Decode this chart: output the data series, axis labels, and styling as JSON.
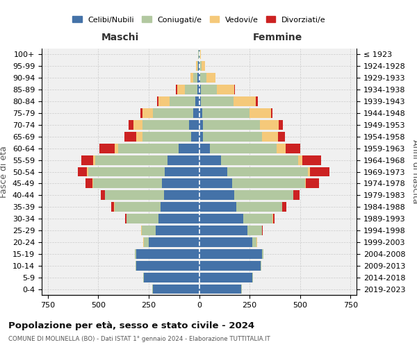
{
  "age_groups": [
    "0-4",
    "5-9",
    "10-14",
    "15-19",
    "20-24",
    "25-29",
    "30-34",
    "35-39",
    "40-44",
    "45-49",
    "50-54",
    "55-59",
    "60-64",
    "65-69",
    "70-74",
    "75-79",
    "80-84",
    "85-89",
    "90-94",
    "95-99",
    "100+"
  ],
  "birth_years": [
    "2019-2023",
    "2014-2018",
    "2009-2013",
    "2004-2008",
    "1999-2003",
    "1994-1998",
    "1989-1993",
    "1984-1988",
    "1979-1983",
    "1974-1978",
    "1969-1973",
    "1964-1968",
    "1959-1963",
    "1954-1958",
    "1949-1953",
    "1944-1948",
    "1939-1943",
    "1934-1938",
    "1929-1933",
    "1924-1928",
    "≤ 1923"
  ],
  "colors": {
    "celibi": "#4472a8",
    "coniugati": "#b2c8a0",
    "vedovi": "#f5c97a",
    "divorziati": "#cc2222"
  },
  "males": {
    "celibi": [
      230,
      275,
      310,
      310,
      250,
      215,
      200,
      190,
      175,
      185,
      170,
      155,
      100,
      40,
      50,
      30,
      18,
      10,
      8,
      4,
      2
    ],
    "coniugati": [
      1,
      2,
      5,
      10,
      25,
      70,
      160,
      230,
      290,
      340,
      380,
      360,
      300,
      240,
      230,
      200,
      130,
      60,
      20,
      5,
      2
    ],
    "vedovi": [
      0,
      0,
      0,
      0,
      1,
      1,
      1,
      1,
      1,
      2,
      5,
      10,
      20,
      30,
      45,
      50,
      55,
      40,
      15,
      5,
      1
    ],
    "divorziati": [
      0,
      0,
      0,
      0,
      1,
      2,
      5,
      15,
      20,
      35,
      45,
      60,
      75,
      60,
      25,
      10,
      5,
      5,
      0,
      0,
      0
    ]
  },
  "females": {
    "celibi": [
      210,
      265,
      305,
      310,
      265,
      240,
      220,
      185,
      175,
      165,
      140,
      110,
      55,
      20,
      20,
      15,
      10,
      8,
      5,
      3,
      2
    ],
    "coniugati": [
      1,
      1,
      3,
      8,
      20,
      70,
      145,
      225,
      290,
      360,
      400,
      380,
      330,
      290,
      280,
      235,
      160,
      80,
      30,
      10,
      2
    ],
    "vedovi": [
      0,
      0,
      0,
      0,
      1,
      1,
      1,
      2,
      2,
      5,
      10,
      20,
      45,
      80,
      95,
      105,
      110,
      85,
      45,
      15,
      3
    ],
    "divorziati": [
      0,
      0,
      0,
      0,
      1,
      3,
      8,
      20,
      30,
      65,
      95,
      95,
      70,
      35,
      20,
      10,
      10,
      5,
      2,
      0,
      0
    ]
  },
  "xlim": 780,
  "title": "Popolazione per età, sesso e stato civile - 2024",
  "subtitle": "COMUNE DI MOLINELLA (BO) - Dati ISTAT 1° gennaio 2024 - Elaborazione TUTTITALIA.IT",
  "legend_labels": [
    "Celibi/Nubili",
    "Coniugati/e",
    "Vedovi/e",
    "Divorziati/e"
  ],
  "ylabel_left": "Fasce di età",
  "ylabel_right": "Anni di nascita",
  "header_left": "Maschi",
  "header_right": "Femmine"
}
